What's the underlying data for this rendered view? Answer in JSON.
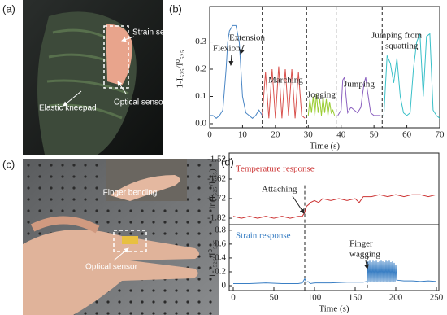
{
  "panel_labels": [
    "(a)",
    "(b)",
    "(c)",
    "(d)"
  ],
  "photo_a": {
    "labels": [
      "Strain sensing",
      "Elastic kneepad",
      "Optical sensor"
    ]
  },
  "photo_c": {
    "labels": [
      "Finger bending",
      "Optical sensor"
    ]
  },
  "chart_data": [
    {
      "type": "line",
      "ylabel": "1-I₅₂₅/I⁰₅₂₅",
      "xlabel": "Time (s)",
      "xlim": [
        0,
        70
      ],
      "ylim": [
        -0.015,
        0.43
      ],
      "xticks": [
        0,
        10,
        20,
        30,
        40,
        50,
        60,
        70
      ],
      "yticks": [
        {
          "value": 0,
          "label": "0.0"
        },
        0.1,
        0.2,
        0.3
      ],
      "vlines": [
        16,
        29.5,
        38.5,
        52.5
      ],
      "annotations": [
        "Flexion",
        "Extension",
        "Marching",
        "Jogging",
        "Jumping",
        "Jumping from",
        "squatting"
      ],
      "series": [
        {
          "color": "#4a86c5",
          "x": [
            0,
            1,
            2,
            3,
            4,
            5,
            5.5,
            6,
            7,
            8,
            9,
            10,
            11,
            12,
            13,
            14,
            15,
            16
          ],
          "values": [
            0.03,
            0.03,
            0.02,
            0.03,
            0.05,
            0.2,
            0.3,
            0.34,
            0.36,
            0.36,
            0.3,
            0.1,
            0.04,
            0.03,
            0.02,
            0.03,
            0.05,
            0.03
          ]
        },
        {
          "color": "#d9534f",
          "x": [
            16,
            17,
            18,
            19,
            20,
            21,
            22,
            23,
            24,
            25,
            26,
            27,
            28,
            29
          ],
          "values": [
            0.03,
            0.19,
            0.02,
            0.2,
            0.02,
            0.21,
            0.02,
            0.2,
            0.03,
            0.2,
            0.02,
            0.19,
            0.03,
            0.02
          ]
        },
        {
          "color": "#9acd32",
          "x": [
            30,
            30.5,
            31,
            31.5,
            32,
            32.5,
            33,
            33.5,
            34,
            34.5,
            35,
            35.5,
            36,
            36.5,
            37,
            37.5,
            38
          ],
          "values": [
            0.03,
            0.09,
            0.04,
            0.1,
            0.03,
            0.11,
            0.04,
            0.09,
            0.03,
            0.1,
            0.04,
            0.09,
            0.03,
            0.08,
            0.04,
            0.05,
            0.03
          ]
        },
        {
          "color": "#8a5fbf",
          "x": [
            39,
            40,
            40.5,
            41,
            41.5,
            42,
            43,
            44,
            45,
            46,
            47,
            47.5,
            48,
            49,
            50,
            51,
            52
          ],
          "values": [
            0.03,
            0.05,
            0.16,
            0.17,
            0.1,
            0.04,
            0.06,
            0.05,
            0.04,
            0.06,
            0.15,
            0.17,
            0.12,
            0.04,
            0.03,
            0.03,
            0.03
          ]
        },
        {
          "color": "#39c0c8",
          "x": [
            53,
            54,
            55,
            56,
            57,
            58,
            59,
            60,
            61,
            62,
            63,
            64,
            65,
            66,
            67,
            68,
            69,
            70
          ],
          "values": [
            0.03,
            0.25,
            0.22,
            0.15,
            0.24,
            0.1,
            0.04,
            0.03,
            0.04,
            0.2,
            0.3,
            0.33,
            0.1,
            0.32,
            0.33,
            0.05,
            0.03,
            0.02
          ]
        }
      ]
    },
    {
      "type": "line",
      "ylabel": "ln(I₅₂₅/I₅₄₅)",
      "xlim": [
        -5,
        253
      ],
      "ylim": [
        -1.853,
        -1.487
      ],
      "yticks": [
        -1.52,
        -1.62,
        -1.72,
        -1.82
      ],
      "vlines": [
        88
      ],
      "annotations": [
        "Temperature response",
        "Attaching"
      ],
      "series": [
        {
          "color": "#cc3333",
          "x": [
            0,
            10,
            20,
            30,
            40,
            50,
            60,
            70,
            80,
            85,
            88,
            90,
            93,
            95,
            100,
            105,
            110,
            120,
            130,
            140,
            150,
            155,
            160,
            170,
            180,
            190,
            200,
            210,
            220,
            230,
            240,
            250
          ],
          "values": [
            -1.81,
            -1.82,
            -1.81,
            -1.82,
            -1.81,
            -1.82,
            -1.81,
            -1.82,
            -1.81,
            -1.81,
            -1.79,
            -1.76,
            -1.75,
            -1.74,
            -1.73,
            -1.74,
            -1.72,
            -1.73,
            -1.72,
            -1.73,
            -1.72,
            -1.74,
            -1.71,
            -1.71,
            -1.7,
            -1.71,
            -1.7,
            -1.71,
            -1.7,
            -1.7,
            -1.71,
            -1.7
          ]
        }
      ]
    },
    {
      "type": "line",
      "ylabel": "1-I₅₂₅/I⁰₅₂₅",
      "xlabel": "Time (s)",
      "xlim": [
        -5,
        253
      ],
      "ylim": [
        -0.07,
        0.88
      ],
      "xticks": [
        0,
        50,
        100,
        150,
        200,
        250
      ],
      "yticks": [
        0,
        0.2,
        0.4,
        0.6,
        0.8
      ],
      "vlines": [
        88,
        165
      ],
      "annotations": [
        "Strain response",
        "Finger",
        "wagging"
      ],
      "series": [
        {
          "color": "#3a7fc4",
          "x": [
            0,
            20,
            40,
            60,
            80,
            85,
            88,
            90,
            92,
            95,
            100,
            120,
            140,
            160,
            164,
            165,
            166,
            167,
            168,
            169,
            170,
            171,
            172,
            173,
            174,
            175,
            176,
            177,
            178,
            179,
            180,
            181,
            182,
            183,
            184,
            185,
            186,
            187,
            188,
            189,
            190,
            191,
            192,
            193,
            194,
            195,
            196,
            197,
            198,
            199,
            200,
            201,
            210,
            220,
            230,
            240,
            250
          ],
          "values": [
            0.03,
            0.03,
            0.04,
            0.03,
            0.03,
            0.04,
            0.1,
            0.05,
            0.06,
            0.03,
            0.04,
            0.04,
            0.05,
            0.05,
            0.06,
            0.05,
            0.35,
            0.06,
            0.36,
            0.05,
            0.34,
            0.06,
            0.36,
            0.05,
            0.35,
            0.06,
            0.36,
            0.05,
            0.34,
            0.06,
            0.35,
            0.05,
            0.36,
            0.06,
            0.35,
            0.05,
            0.34,
            0.06,
            0.36,
            0.05,
            0.35,
            0.06,
            0.36,
            0.05,
            0.34,
            0.06,
            0.35,
            0.05,
            0.33,
            0.06,
            0.3,
            0.08,
            0.07,
            0.07,
            0.06,
            0.07,
            0.06
          ]
        }
      ]
    }
  ]
}
